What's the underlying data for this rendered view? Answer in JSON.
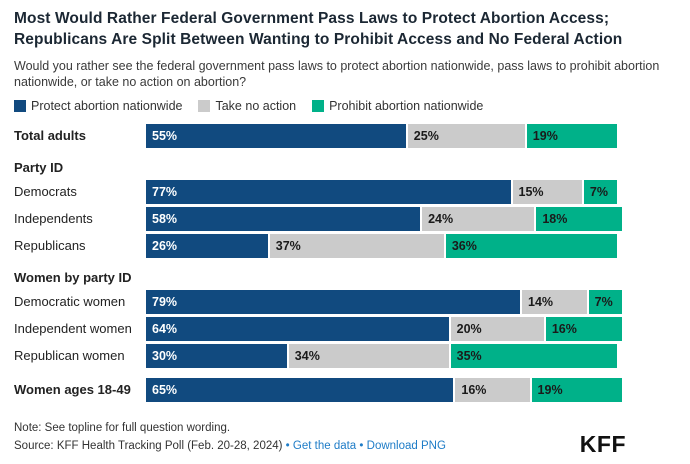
{
  "title": "Most Would Rather Federal Government Pass Laws to Protect Abortion Access; Republicans Are Split Between Wanting to Prohibit Access and No Federal Action",
  "subtitle": "Would you rather see the federal government pass laws to protect abortion nationwide, pass laws to prohibit abortion nationwide, or take no action on abortion?",
  "legend": [
    {
      "label": "Protect abortion nationwide",
      "color": "#114A7F"
    },
    {
      "label": "Take no action",
      "color": "#CBCBCB"
    },
    {
      "label": "Prohibit abortion nationwide",
      "color": "#00B189"
    }
  ],
  "chart_data": {
    "type": "bar",
    "stacked": true,
    "orientation": "horizontal",
    "unit": "%",
    "xlim": [
      0,
      100
    ],
    "grid": false,
    "legend_position": "top",
    "title": "Most Would Rather Federal Government Pass Laws to Protect Abortion Access; Republicans Are Split Between Wanting to Prohibit Access and No Federal Action",
    "series_names": [
      "Protect abortion nationwide",
      "Take no action",
      "Prohibit abortion nationwide"
    ],
    "colors": [
      "#114A7F",
      "#CBCBCB",
      "#00B189"
    ],
    "groups": [
      {
        "header": "",
        "rows": [
          {
            "label": "Total adults",
            "bold": true,
            "values": [
              55,
              25,
              19
            ]
          }
        ]
      },
      {
        "header": "Party ID",
        "rows": [
          {
            "label": "Democrats",
            "bold": false,
            "values": [
              77,
              15,
              7
            ]
          },
          {
            "label": "Independents",
            "bold": false,
            "values": [
              58,
              24,
              18
            ]
          },
          {
            "label": "Republicans",
            "bold": false,
            "values": [
              26,
              37,
              36
            ]
          }
        ]
      },
      {
        "header": "Women by party ID",
        "rows": [
          {
            "label": "Democratic women",
            "bold": false,
            "values": [
              79,
              14,
              7
            ]
          },
          {
            "label": "Independent women",
            "bold": false,
            "values": [
              64,
              20,
              16
            ]
          },
          {
            "label": "Republican women",
            "bold": false,
            "values": [
              30,
              34,
              35
            ]
          }
        ]
      },
      {
        "header": "",
        "rows": [
          {
            "label": "Women ages 18-49",
            "bold": true,
            "values": [
              65,
              16,
              19
            ]
          }
        ]
      }
    ]
  },
  "footer": {
    "note": "Note: See topline for full question wording.",
    "source": "Source: KFF Health Tracking Poll (Feb. 20-28, 2024)",
    "bullet": "•",
    "links": [
      {
        "label": "Get the data"
      },
      {
        "label": "Download PNG"
      }
    ],
    "logo": "KFF"
  }
}
